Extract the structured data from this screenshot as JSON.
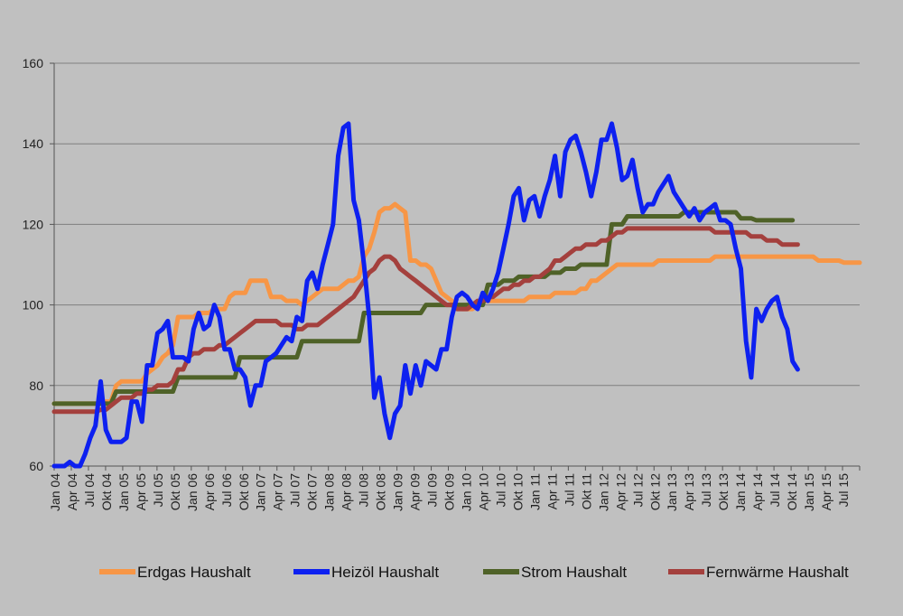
{
  "chart_data": {
    "type": "line",
    "title": "",
    "xlabel": "",
    "ylabel": "",
    "ylim": [
      60,
      160
    ],
    "yticks": [
      60,
      80,
      100,
      120,
      140,
      160
    ],
    "grid": true,
    "legend_position": "bottom",
    "start": "Jan 04",
    "x_tick_labels": [
      "Jan 04",
      "Apr 04",
      "Jul 04",
      "Okt 04",
      "Jan 05",
      "Apr 05",
      "Jul 05",
      "Okt 05",
      "Jan 06",
      "Apr 06",
      "Jul 06",
      "Okt 06",
      "Jan 07",
      "Apr 07",
      "Jul 07",
      "Okt 07",
      "Jan 08",
      "Apr 08",
      "Jul 08",
      "Okt 08",
      "Jan 09",
      "Apr 09",
      "Jul 09",
      "Okt 09",
      "Jan 10",
      "Apr 10",
      "Jul 10",
      "Okt 10",
      "Jan 11",
      "Apr 11",
      "Jul 11",
      "Okt 11",
      "Jan 12",
      "Apr 12",
      "Jul 12",
      "Okt 12",
      "Jan 13",
      "Apr 13",
      "Jul 13",
      "Okt 13",
      "Jan 14",
      "Apr 14",
      "Jul 14",
      "Okt 14",
      "Jan 15",
      "Apr 15",
      "Jul 15"
    ],
    "series": [
      {
        "name": "Erdgas Haushalt",
        "color": "#f79646",
        "values": [
          75.5,
          75.5,
          75.5,
          75.5,
          75.5,
          75.5,
          75.5,
          75.5,
          75.5,
          75.5,
          76,
          76,
          80,
          81,
          81,
          81,
          81,
          81,
          83,
          84,
          85,
          87,
          88,
          90,
          97,
          97,
          97,
          97,
          98,
          98,
          98,
          99,
          99,
          99,
          102,
          103,
          103,
          103,
          106,
          106,
          106,
          106,
          102,
          102,
          102,
          101,
          101,
          101,
          100,
          101,
          102,
          103,
          104,
          104,
          104,
          104,
          105,
          106,
          106,
          107,
          112,
          114,
          118,
          123,
          124,
          124,
          125,
          124,
          123,
          111,
          111,
          110,
          110,
          109,
          106,
          103,
          102,
          101,
          100,
          99,
          99,
          99,
          100,
          101,
          101,
          101,
          101,
          101,
          101,
          101,
          101,
          101,
          102,
          102,
          102,
          102,
          102,
          103,
          103,
          103,
          103,
          103,
          104,
          104,
          106,
          106,
          107,
          108,
          109,
          110,
          110,
          110,
          110,
          110,
          110,
          110,
          110,
          111,
          111,
          111,
          111,
          111,
          111,
          111,
          111,
          111,
          111,
          111,
          112,
          112,
          112,
          112,
          112,
          112,
          112,
          112,
          112,
          112,
          112,
          112,
          112,
          112,
          112,
          112,
          112,
          112,
          112,
          112,
          111,
          111,
          111,
          111,
          111,
          110.5,
          110.5,
          110.5,
          110.5
        ]
      },
      {
        "name": "Heizöl Haushalt",
        "color": "#0d20f0",
        "values": [
          57,
          56,
          60,
          61,
          59,
          60,
          63,
          67,
          70,
          81,
          69,
          66,
          66,
          66,
          67,
          76,
          76,
          71,
          85,
          85,
          93,
          94,
          96,
          87,
          87,
          87,
          86,
          94,
          98,
          94,
          95,
          100,
          97,
          89,
          89,
          84,
          84,
          82,
          75,
          80,
          80,
          86,
          87,
          88,
          90,
          92,
          91,
          97,
          96,
          106,
          108,
          104,
          110,
          115,
          120,
          137,
          144,
          145,
          126,
          121,
          110,
          97,
          77,
          82,
          73,
          67,
          73,
          75,
          85,
          78,
          85,
          80,
          86,
          85,
          84,
          89,
          89,
          97,
          102,
          103,
          102,
          100,
          99,
          103,
          101,
          104,
          108,
          114,
          120,
          127,
          129,
          121,
          126,
          127,
          122,
          127,
          131,
          137,
          127,
          138,
          141,
          142,
          138,
          133,
          127,
          133,
          141,
          141,
          145,
          139,
          131,
          132,
          136,
          129,
          123,
          125,
          125,
          128,
          130,
          132,
          128,
          126,
          124,
          122,
          124,
          121,
          123,
          124,
          125,
          121,
          121,
          120,
          114,
          109,
          91,
          82,
          99,
          96,
          99,
          101,
          102,
          97,
          94,
          86,
          84
        ]
      },
      {
        "name": "Strom Haushalt",
        "color": "#4f6228",
        "values": [
          75.5,
          75.5,
          75.5,
          75.5,
          75.5,
          75.5,
          75.5,
          75.5,
          75.5,
          75.5,
          75.5,
          75.5,
          78.5,
          78.5,
          78.5,
          78.5,
          78.5,
          78.5,
          78.5,
          78.5,
          78.5,
          78.5,
          78.5,
          78.5,
          82,
          82,
          82,
          82,
          82,
          82,
          82,
          82,
          82,
          82,
          82,
          82,
          87,
          87,
          87,
          87,
          87,
          87,
          87,
          87,
          87,
          87,
          87,
          87,
          91,
          91,
          91,
          91,
          91,
          91,
          91,
          91,
          91,
          91,
          91,
          91,
          98,
          98,
          98,
          98,
          98,
          98,
          98,
          98,
          98,
          98,
          98,
          98,
          100,
          100,
          100,
          100,
          100,
          100,
          100,
          100,
          100,
          100,
          100,
          100,
          105,
          105,
          105,
          106,
          106,
          106,
          107,
          107,
          107,
          107,
          107,
          107,
          108,
          108,
          108,
          109,
          109,
          109,
          110,
          110,
          110,
          110,
          110,
          110,
          120,
          120,
          120,
          122,
          122,
          122,
          122,
          122,
          122,
          122,
          122,
          122,
          122,
          122,
          123,
          123,
          123,
          123,
          123,
          123,
          123,
          123,
          123,
          123,
          123,
          121.5,
          121.5,
          121.5,
          121,
          121,
          121,
          121,
          121,
          121,
          121,
          121
        ]
      },
      {
        "name": "Fernwärme Haushalt",
        "color": "#a4403d",
        "values": [
          73.5,
          73.5,
          73.5,
          73.5,
          73.5,
          73.5,
          73.5,
          73.5,
          73.5,
          74,
          74,
          75,
          76,
          77,
          77,
          77,
          78,
          78,
          79,
          79,
          80,
          80,
          80,
          81,
          84,
          84,
          87,
          88,
          88,
          89,
          89,
          89,
          90,
          90,
          91,
          92,
          93,
          94,
          95,
          96,
          96,
          96,
          96,
          96,
          95,
          95,
          95,
          94,
          94,
          95,
          95,
          95,
          96,
          97,
          98,
          99,
          100,
          101,
          102,
          104,
          106,
          108,
          109,
          111,
          112,
          112,
          111,
          109,
          108,
          107,
          106,
          105,
          104,
          103,
          102,
          101,
          100,
          100,
          99,
          99,
          99,
          100,
          101,
          101,
          102,
          102,
          103,
          104,
          104,
          105,
          105,
          106,
          106,
          107,
          107,
          108,
          109,
          111,
          111,
          112,
          113,
          114,
          114,
          115,
          115,
          115,
          116,
          116,
          117,
          118,
          118,
          119,
          119,
          119,
          119,
          119,
          119,
          119,
          119,
          119,
          119,
          119,
          119,
          119,
          119,
          119,
          119,
          119,
          118,
          118,
          118,
          118,
          118,
          118,
          118,
          117,
          117,
          117,
          116,
          116,
          116,
          115,
          115,
          115,
          115
        ]
      }
    ]
  }
}
